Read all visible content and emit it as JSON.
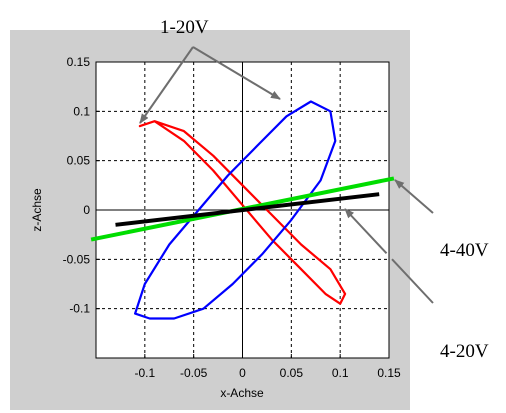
{
  "chart_data": {
    "type": "line",
    "xlabel": "x-Achse",
    "ylabel": "z-Achse",
    "xlim": [
      -0.15,
      0.15
    ],
    "ylim": [
      -0.15,
      0.15
    ],
    "grid": true,
    "x_ticks": [
      -0.1,
      -0.05,
      0,
      0.05,
      0.1,
      0.15
    ],
    "x_tick_labels": [
      "-0.1",
      "-0.05",
      "0",
      "0.05",
      "0.1",
      "0.15"
    ],
    "y_ticks": [
      0.15,
      0.1,
      0.05,
      0,
      -0.05,
      -0.1
    ],
    "y_tick_labels": [
      "0.15",
      "0.1",
      "0.05",
      "0",
      "-0.05",
      "-0.1"
    ],
    "series": [
      {
        "color": "#ff0000",
        "shape": "ellipse",
        "x": [
          -0.105,
          -0.09,
          -0.06,
          -0.03,
          0.0,
          0.03,
          0.06,
          0.085,
          0.1,
          0.105,
          0.09,
          0.06,
          0.03,
          0.0,
          -0.03,
          -0.06,
          -0.09,
          -0.105
        ],
        "y": [
          0.085,
          0.09,
          0.07,
          0.04,
          0.005,
          -0.03,
          -0.06,
          -0.085,
          -0.095,
          -0.085,
          -0.06,
          -0.035,
          -0.005,
          0.025,
          0.055,
          0.08,
          0.09,
          0.085
        ]
      },
      {
        "color": "#0000ff",
        "shape": "ellipse",
        "x": [
          -0.11,
          -0.1,
          -0.075,
          -0.045,
          -0.015,
          0.015,
          0.045,
          0.07,
          0.09,
          0.095,
          0.08,
          0.05,
          0.02,
          -0.01,
          -0.04,
          -0.07,
          -0.095,
          -0.11
        ],
        "y": [
          -0.105,
          -0.075,
          -0.035,
          0.0,
          0.035,
          0.065,
          0.095,
          0.11,
          0.1,
          0.07,
          0.03,
          -0.01,
          -0.045,
          -0.075,
          -0.1,
          -0.11,
          -0.11,
          -0.105
        ]
      },
      {
        "color": "#00dd00",
        "shape": "line",
        "x": [
          -0.155,
          0.155
        ],
        "y": [
          -0.03,
          0.032
        ]
      },
      {
        "color": "#000000",
        "shape": "line",
        "x": [
          -0.13,
          0.14
        ],
        "y": [
          -0.015,
          0.016
        ]
      }
    ],
    "annotations": [
      {
        "text": "1-20V"
      },
      {
        "text": "4-40V"
      },
      {
        "text": "4-20V"
      }
    ]
  }
}
